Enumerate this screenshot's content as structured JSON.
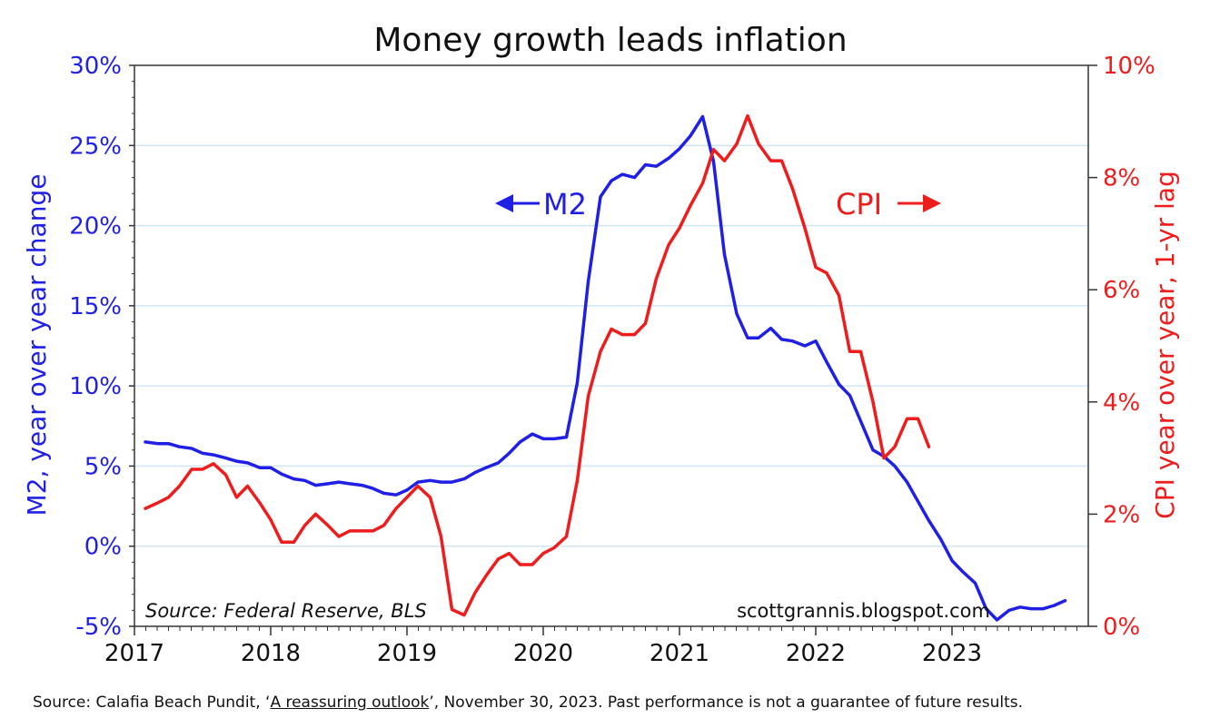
{
  "colors": {
    "m2": "#1f1fe6",
    "cpi": "#ee1c1c",
    "grid": "#cfe6f5",
    "axis": "#333333"
  },
  "footer": {
    "prefix": "Source: Calafia Beach Pundit, ‘",
    "link": "A reassuring outlook",
    "suffix": "’, November 30, 2023. Past performance is not a guarantee of future results."
  },
  "chart_data": {
    "type": "line",
    "title": "Money growth leads inflation",
    "ylabel_left": "M2, year over year change",
    "ylabel_right": "CPI year over year, 1-yr lag",
    "source_text": "Source: Federal Reserve, BLS",
    "site_text": "scottgrannis.blogspot.com",
    "xlim": [
      2017,
      2024
    ],
    "x_ticks": [
      "2017",
      "2018",
      "2019",
      "2020",
      "2021",
      "2022",
      "2023"
    ],
    "ylim_left": [
      -5,
      30
    ],
    "left_ticks": [
      "-5%",
      "0%",
      "5%",
      "10%",
      "15%",
      "20%",
      "25%",
      "30%"
    ],
    "ylim_right": [
      0,
      10
    ],
    "right_ticks": [
      "0%",
      "2%",
      "4%",
      "6%",
      "8%",
      "10%"
    ],
    "grid": true,
    "series": [
      {
        "name": "M2",
        "label": "M2",
        "label_arrow": "left",
        "axis": "left",
        "x": [
          2017.08,
          2017.17,
          2017.25,
          2017.33,
          2017.42,
          2017.5,
          2017.58,
          2017.67,
          2017.75,
          2017.83,
          2017.92,
          2018.0,
          2018.08,
          2018.17,
          2018.25,
          2018.33,
          2018.42,
          2018.5,
          2018.58,
          2018.67,
          2018.75,
          2018.83,
          2018.92,
          2019.0,
          2019.08,
          2019.17,
          2019.25,
          2019.33,
          2019.42,
          2019.5,
          2019.58,
          2019.67,
          2019.75,
          2019.83,
          2019.92,
          2020.0,
          2020.08,
          2020.17,
          2020.25,
          2020.33,
          2020.42,
          2020.5,
          2020.58,
          2020.67,
          2020.75,
          2020.83,
          2020.92,
          2021.0,
          2021.08,
          2021.17,
          2021.25,
          2021.33,
          2021.42,
          2021.5,
          2021.58,
          2021.67,
          2021.75,
          2021.83,
          2021.92,
          2022.0,
          2022.08,
          2022.17,
          2022.25,
          2022.33,
          2022.42,
          2022.5,
          2022.58,
          2022.67,
          2022.75,
          2022.83,
          2022.92,
          2023.0,
          2023.08,
          2023.17,
          2023.25,
          2023.33,
          2023.42,
          2023.5,
          2023.58,
          2023.67,
          2023.75,
          2023.83
        ],
        "values": [
          6.5,
          6.4,
          6.4,
          6.2,
          6.1,
          5.8,
          5.7,
          5.5,
          5.3,
          5.2,
          4.9,
          4.9,
          4.5,
          4.2,
          4.1,
          3.8,
          3.9,
          4.0,
          3.9,
          3.8,
          3.6,
          3.3,
          3.2,
          3.5,
          4.0,
          4.1,
          4.0,
          4.0,
          4.2,
          4.6,
          4.9,
          5.2,
          5.8,
          6.5,
          7.0,
          6.7,
          6.7,
          6.8,
          10.2,
          16.5,
          21.8,
          22.8,
          23.2,
          23.0,
          23.8,
          23.7,
          24.2,
          24.8,
          25.6,
          26.8,
          24.0,
          18.2,
          14.5,
          13.0,
          13.0,
          13.6,
          12.9,
          12.8,
          12.5,
          12.8,
          11.5,
          10.1,
          9.4,
          7.8,
          6.0,
          5.6,
          5.0,
          4.0,
          2.8,
          1.6,
          0.4,
          -0.9,
          -1.6,
          -2.3,
          -3.9,
          -4.6,
          -4.0,
          -3.8,
          -3.9,
          -3.9,
          -3.7,
          -3.4
        ]
      },
      {
        "name": "CPI",
        "label": "CPI",
        "label_arrow": "right",
        "axis": "right",
        "x": [
          2017.08,
          2017.17,
          2017.25,
          2017.33,
          2017.42,
          2017.5,
          2017.58,
          2017.67,
          2017.75,
          2017.83,
          2017.92,
          2018.0,
          2018.08,
          2018.17,
          2018.25,
          2018.33,
          2018.42,
          2018.5,
          2018.58,
          2018.67,
          2018.75,
          2018.83,
          2018.92,
          2019.0,
          2019.08,
          2019.17,
          2019.25,
          2019.33,
          2019.42,
          2019.5,
          2019.58,
          2019.67,
          2019.75,
          2019.83,
          2019.92,
          2020.0,
          2020.08,
          2020.17,
          2020.25,
          2020.33,
          2020.42,
          2020.5,
          2020.58,
          2020.67,
          2020.75,
          2020.83,
          2020.92,
          2021.0,
          2021.08,
          2021.17,
          2021.25,
          2021.33,
          2021.42,
          2021.5,
          2021.58,
          2021.67,
          2021.75,
          2021.83,
          2021.92,
          2022.0,
          2022.08,
          2022.17,
          2022.25,
          2022.33,
          2022.42,
          2022.5,
          2022.58,
          2022.67,
          2022.75,
          2022.83
        ],
        "values": [
          2.1,
          2.2,
          2.3,
          2.5,
          2.8,
          2.8,
          2.9,
          2.7,
          2.3,
          2.5,
          2.2,
          1.9,
          1.5,
          1.5,
          1.8,
          2.0,
          1.8,
          1.6,
          1.7,
          1.7,
          1.7,
          1.8,
          2.1,
          2.3,
          2.5,
          2.3,
          1.6,
          0.3,
          0.2,
          0.6,
          0.9,
          1.2,
          1.3,
          1.1,
          1.1,
          1.3,
          1.4,
          1.6,
          2.6,
          4.1,
          4.9,
          5.3,
          5.2,
          5.2,
          5.4,
          6.2,
          6.8,
          7.1,
          7.5,
          7.9,
          8.5,
          8.3,
          8.6,
          9.1,
          8.6,
          8.3,
          8.3,
          7.8,
          7.1,
          6.4,
          6.3,
          5.9,
          4.9,
          4.9,
          4.0,
          3.0,
          3.2,
          3.7,
          3.7,
          3.2
        ]
      }
    ]
  }
}
